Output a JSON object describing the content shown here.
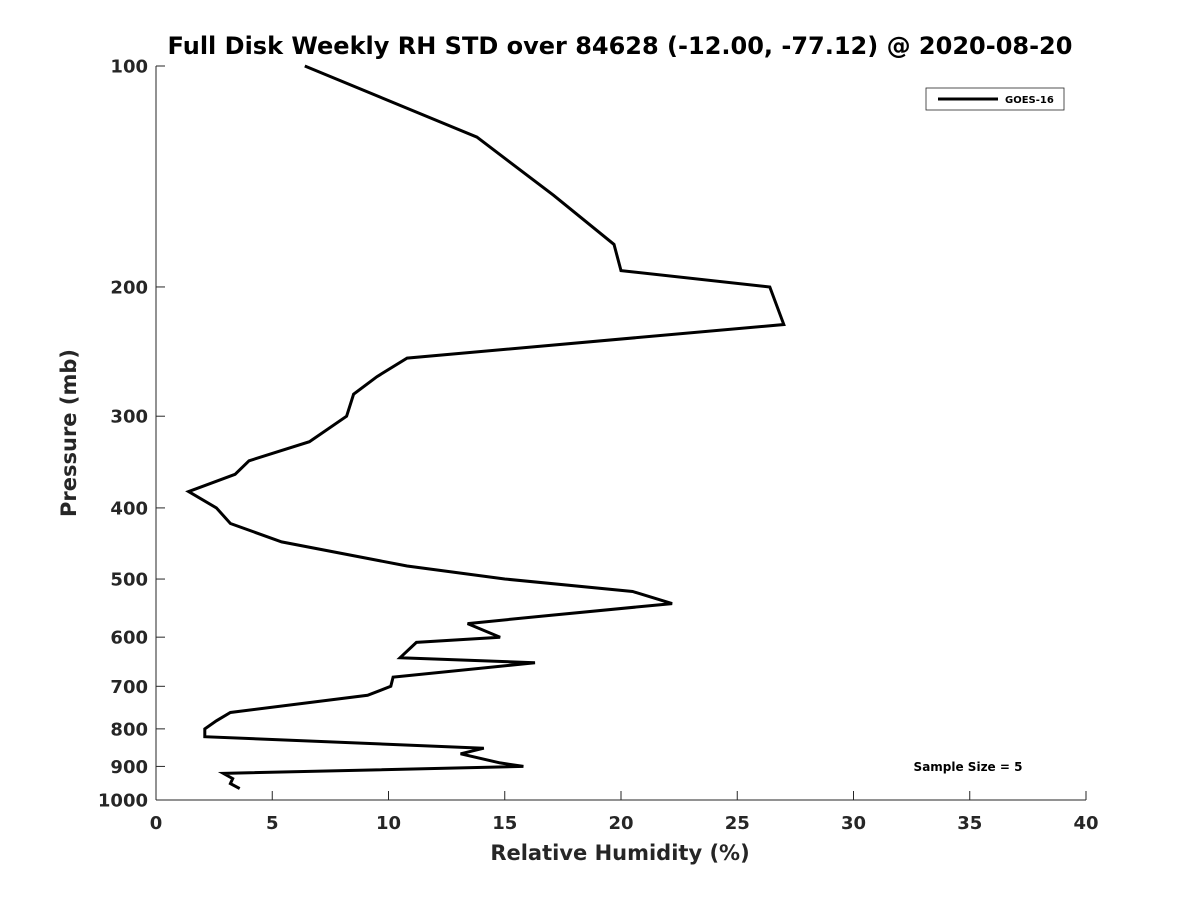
{
  "chart_data": {
    "type": "line",
    "title": "Full Disk Weekly RH STD over 84628 (-12.00, -77.12) @ 2020-08-20",
    "xlabel": "Relative Humidity (%)",
    "ylabel": "Pressure (mb)",
    "xlim": [
      0,
      40
    ],
    "ylim": [
      100,
      1000
    ],
    "y_scale": "log",
    "y_reversed": true,
    "grid": false,
    "legend_position": "top-right",
    "x_ticks": [
      0,
      5,
      10,
      15,
      20,
      25,
      30,
      35,
      40
    ],
    "y_ticks": [
      100,
      200,
      300,
      400,
      500,
      600,
      700,
      800,
      900,
      1000
    ],
    "annotation": "Sample Size = 5",
    "series": [
      {
        "name": "GOES-16",
        "color": "#000000",
        "points": [
          [
            6.4,
            100
          ],
          [
            13.8,
            125
          ],
          [
            17.1,
            150
          ],
          [
            19.7,
            175
          ],
          [
            20.0,
            190
          ],
          [
            26.4,
            200
          ],
          [
            27.0,
            225
          ],
          [
            10.8,
            250
          ],
          [
            9.5,
            265
          ],
          [
            8.5,
            280
          ],
          [
            8.2,
            300
          ],
          [
            6.6,
            325
          ],
          [
            4.0,
            345
          ],
          [
            3.4,
            360
          ],
          [
            1.4,
            380
          ],
          [
            2.6,
            400
          ],
          [
            3.2,
            420
          ],
          [
            5.4,
            445
          ],
          [
            10.8,
            480
          ],
          [
            15.0,
            500
          ],
          [
            20.5,
            520
          ],
          [
            22.2,
            540
          ],
          [
            17.0,
            560
          ],
          [
            13.4,
            575
          ],
          [
            14.8,
            600
          ],
          [
            11.2,
            610
          ],
          [
            10.5,
            640
          ],
          [
            16.3,
            650
          ],
          [
            10.2,
            680
          ],
          [
            10.1,
            700
          ],
          [
            9.1,
            720
          ],
          [
            3.2,
            760
          ],
          [
            2.6,
            780
          ],
          [
            2.1,
            800
          ],
          [
            2.1,
            820
          ],
          [
            14.1,
            850
          ],
          [
            13.1,
            865
          ],
          [
            14.8,
            890
          ],
          [
            15.8,
            900
          ],
          [
            2.9,
            920
          ],
          [
            3.3,
            935
          ],
          [
            3.2,
            950
          ],
          [
            3.6,
            965
          ]
        ]
      }
    ]
  }
}
